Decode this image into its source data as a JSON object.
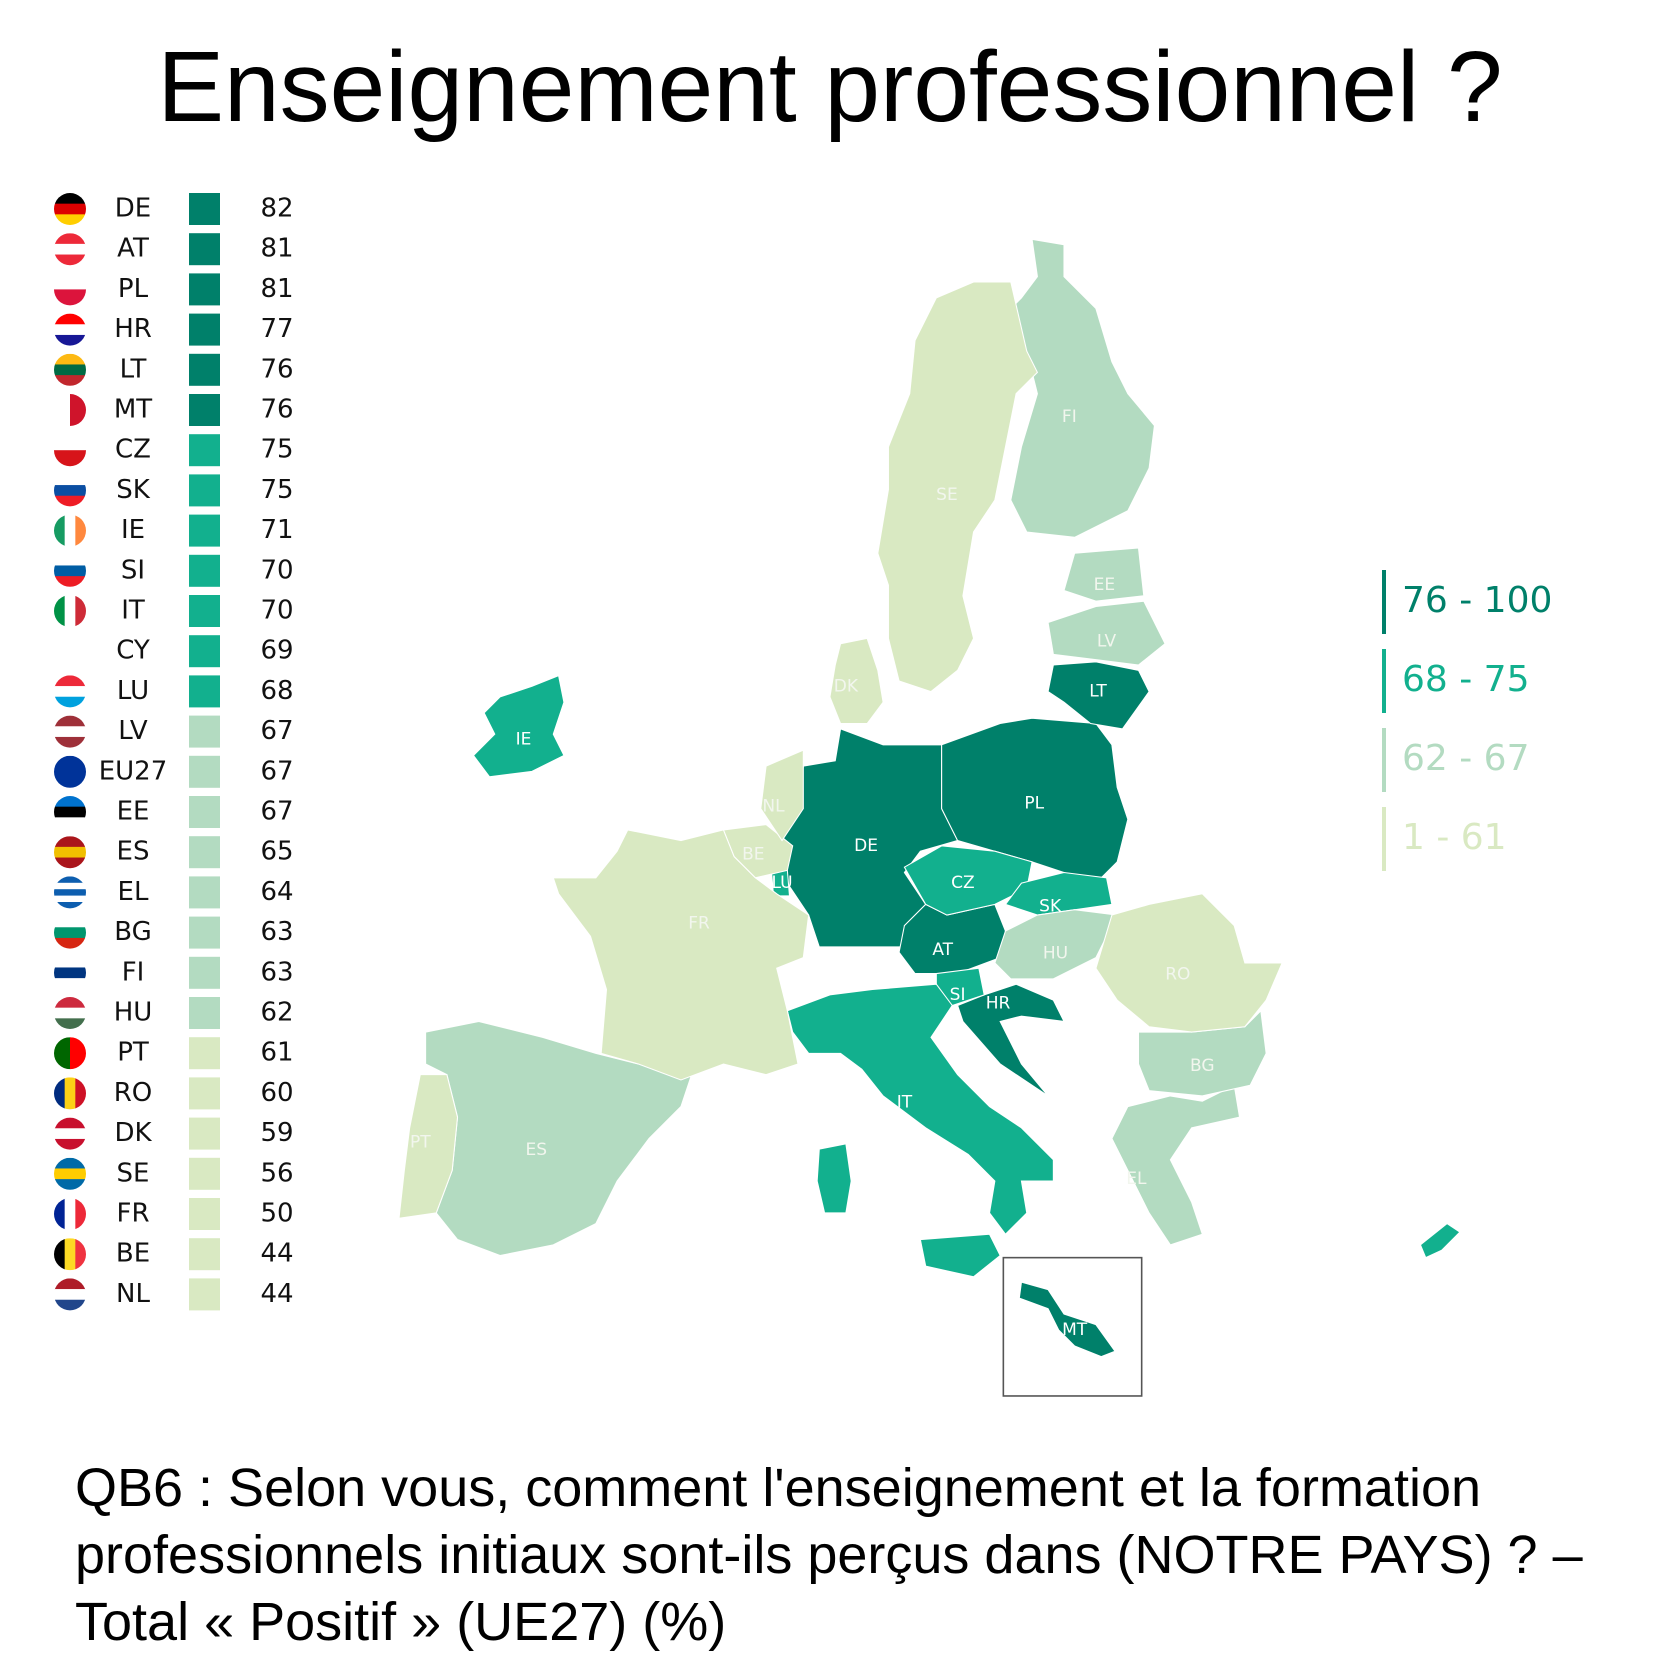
{
  "chart_data": {
    "type": "choropleth",
    "title": "Enseigne­ment professionnel ?",
    "note": "QB6 : Selon vous, comment l'enseignement et la formation professionnels initiaux sont-ils perçus dans (NOTRE PAYS) ? – Total « Positif » (UE27) (%)",
    "categories": [
      "DE",
      "AT",
      "PL",
      "HR",
      "LT",
      "MT",
      "CZ",
      "SK",
      "IE",
      "SI",
      "IT",
      "CY",
      "LU",
      "LV",
      "EU27",
      "EE",
      "ES",
      "EL",
      "BG",
      "FI",
      "HU",
      "PT",
      "RO",
      "DK",
      "SE",
      "FR",
      "BE",
      "NL"
    ],
    "values": [
      82,
      81,
      81,
      77,
      76,
      76,
      75,
      75,
      71,
      70,
      70,
      69,
      68,
      67,
      67,
      67,
      65,
      64,
      63,
      63,
      62,
      61,
      60,
      59,
      56,
      50,
      44,
      44
    ],
    "bins": [
      {
        "label": "76 - 100",
        "range": [
          76,
          100
        ],
        "color": "#00806a"
      },
      {
        "label": "68 - 75",
        "range": [
          68,
          75
        ],
        "color": "#12b08e"
      },
      {
        "label": "62 - 67",
        "range": [
          62,
          67
        ],
        "color": "#b3dbc1"
      },
      {
        "label": "1 - 61",
        "range": [
          1,
          61
        ],
        "color": "#d9e9c2"
      }
    ]
  }
}
